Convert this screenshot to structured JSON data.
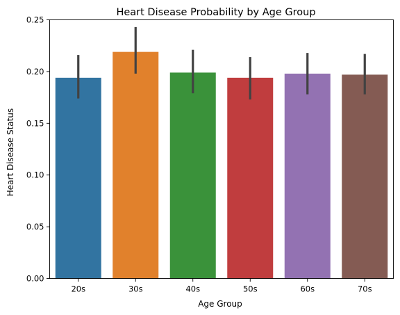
{
  "chart_data": {
    "type": "bar",
    "title": "Heart Disease Probability by Age Group",
    "xlabel": "Age Group",
    "ylabel": "Heart Disease Status",
    "ylim": [
      0,
      0.25
    ],
    "yticks": [
      "0.00",
      "0.05",
      "0.10",
      "0.15",
      "0.20",
      "0.25"
    ],
    "categories": [
      "20s",
      "30s",
      "40s",
      "50s",
      "60s",
      "70s"
    ],
    "values": [
      0.194,
      0.219,
      0.199,
      0.194,
      0.198,
      0.197
    ],
    "error_low": [
      0.174,
      0.198,
      0.179,
      0.173,
      0.178,
      0.178
    ],
    "error_high": [
      0.216,
      0.243,
      0.221,
      0.214,
      0.218,
      0.217
    ],
    "colors": [
      "#3274a1",
      "#e1812c",
      "#3a923a",
      "#c03d3e",
      "#9372b2",
      "#845b53"
    ],
    "error_bar_color": "#424242",
    "grid": false,
    "legend": "none"
  }
}
